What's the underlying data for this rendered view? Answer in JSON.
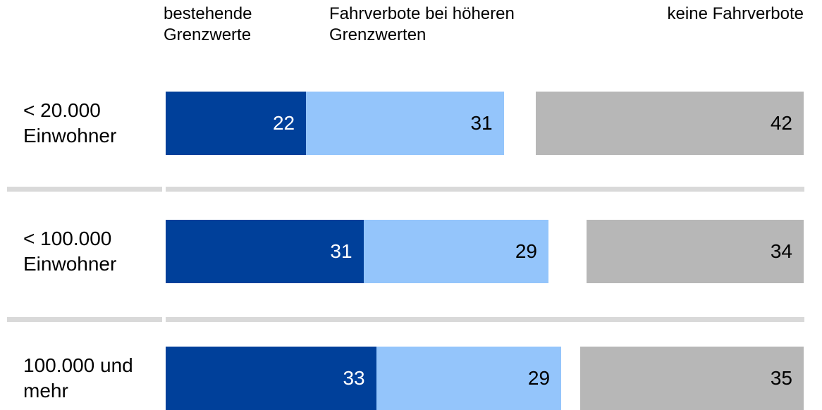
{
  "chart_data": {
    "type": "bar",
    "categories": [
      "< 20.000 Einwohner",
      "< 100.000 Einwohner",
      "100.000 und mehr"
    ],
    "series": [
      {
        "name": "bestehende Grenzwerte",
        "color": "#00409a",
        "values": [
          22,
          31,
          33
        ]
      },
      {
        "name": "Fahrverbote bei höheren Grenzwerten",
        "color": "#94c5fb",
        "values": [
          31,
          29,
          29
        ]
      },
      {
        "name": "keine Fahrverbote",
        "color": "#b7b7b7",
        "values": [
          42,
          34,
          35
        ]
      }
    ]
  }
}
